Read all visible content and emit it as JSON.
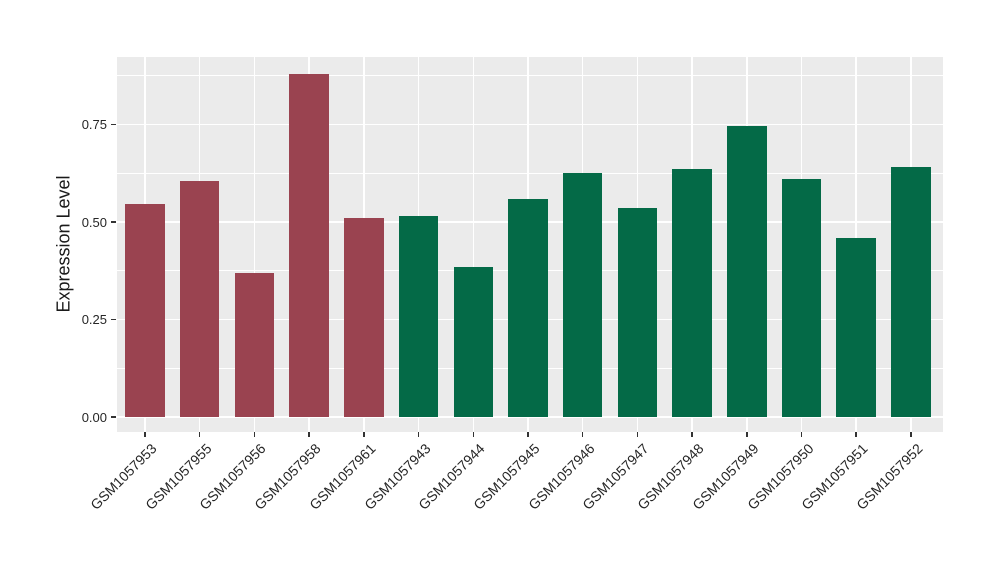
{
  "chart_data": {
    "type": "bar",
    "title": "",
    "xlabel": "",
    "ylabel": "Expression Level",
    "categories": [
      "GSM1057953",
      "GSM1057955",
      "GSM1057956",
      "GSM1057958",
      "GSM1057961",
      "GSM1057943",
      "GSM1057944",
      "GSM1057945",
      "GSM1057946",
      "GSM1057947",
      "GSM1057948",
      "GSM1057949",
      "GSM1057950",
      "GSM1057951",
      "GSM1057952"
    ],
    "values": [
      0.545,
      0.605,
      0.37,
      0.88,
      0.51,
      0.515,
      0.385,
      0.56,
      0.625,
      0.535,
      0.635,
      0.745,
      0.61,
      0.46,
      0.64
    ],
    "bar_groups": [
      0,
      0,
      0,
      0,
      0,
      1,
      1,
      1,
      1,
      1,
      1,
      1,
      1,
      1,
      1
    ],
    "group_colors": [
      "#9A4350",
      "#046A47"
    ],
    "ylim": [
      -0.04,
      0.925
    ],
    "yticks": [
      0.0,
      0.25,
      0.5,
      0.75
    ],
    "ytick_labels": [
      "0.00",
      "0.25",
      "0.50",
      "0.75"
    ],
    "minor_yticks": [
      0.125,
      0.375,
      0.625,
      0.875
    ],
    "grid": true,
    "legend_position": "none",
    "panel_background": "#EBEBEB",
    "gridline_color": "#FFFFFF",
    "tick_color": "#333333",
    "label_color": "#262626"
  }
}
